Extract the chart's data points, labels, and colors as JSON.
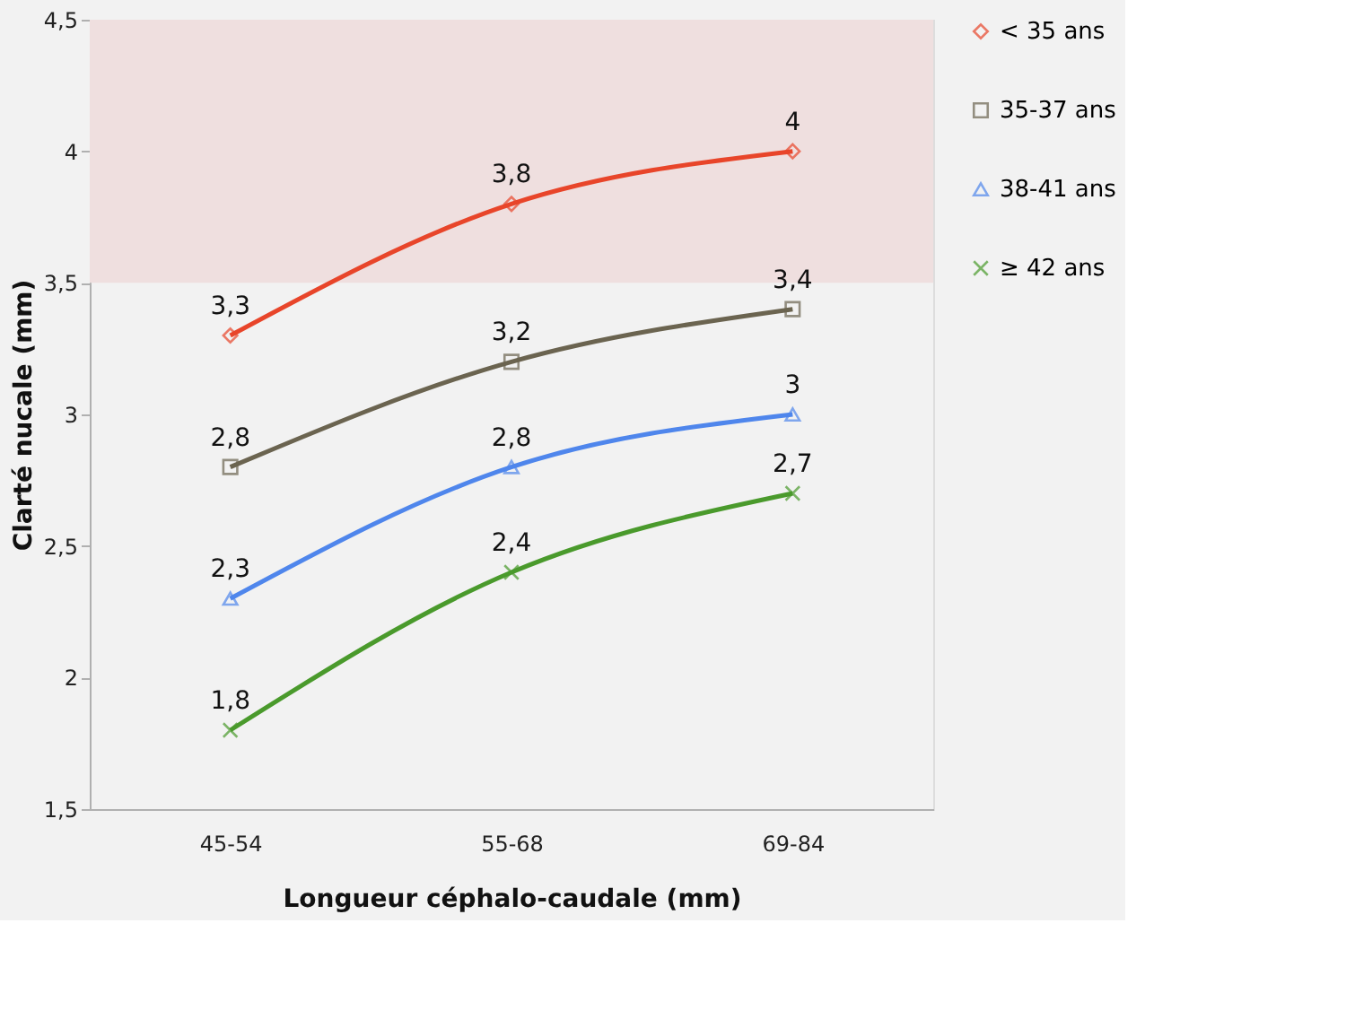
{
  "chart_data": {
    "type": "line",
    "xlabel": "Longueur céphalo-caudale (mm)",
    "ylabel": "Clarté nucale (mm)",
    "categories": [
      "45-54",
      "55-68",
      "69-84"
    ],
    "series": [
      {
        "name": "< 35 ans",
        "color": "#e8452a",
        "marker": "diamond",
        "values": [
          3.3,
          3.8,
          4
        ],
        "value_labels": [
          "3,3",
          "3,8",
          "4"
        ]
      },
      {
        "name": "35-37 ans",
        "color": "#6b6450",
        "marker": "square",
        "values": [
          2.8,
          3.2,
          3.4
        ],
        "value_labels": [
          "2,8",
          "3,2",
          "3,4"
        ]
      },
      {
        "name": "38-41 ans",
        "color": "#4f86ec",
        "marker": "triangle",
        "values": [
          2.3,
          2.8,
          3
        ],
        "value_labels": [
          "2,3",
          "2,8",
          "3"
        ]
      },
      {
        "name": "≥ 42 ans",
        "color": "#4a9a2c",
        "marker": "cross",
        "values": [
          1.8,
          2.4,
          2.7
        ],
        "value_labels": [
          "1,8",
          "2,4",
          "2,7"
        ]
      }
    ],
    "ylim": [
      1.5,
      4.5
    ],
    "yticks": [
      {
        "value": 1.5,
        "label": "1,5"
      },
      2,
      {
        "value": 2.5,
        "label": "2,5"
      },
      3,
      {
        "value": 3.5,
        "label": "3,5"
      },
      4,
      {
        "value": 4.5,
        "label": "4,5"
      }
    ],
    "bands": [
      {
        "axis": "y",
        "from": 3.5,
        "to": 4.5,
        "color": "#efdfdf"
      }
    ],
    "grid": false,
    "legend": "right",
    "line_style": "solid"
  }
}
